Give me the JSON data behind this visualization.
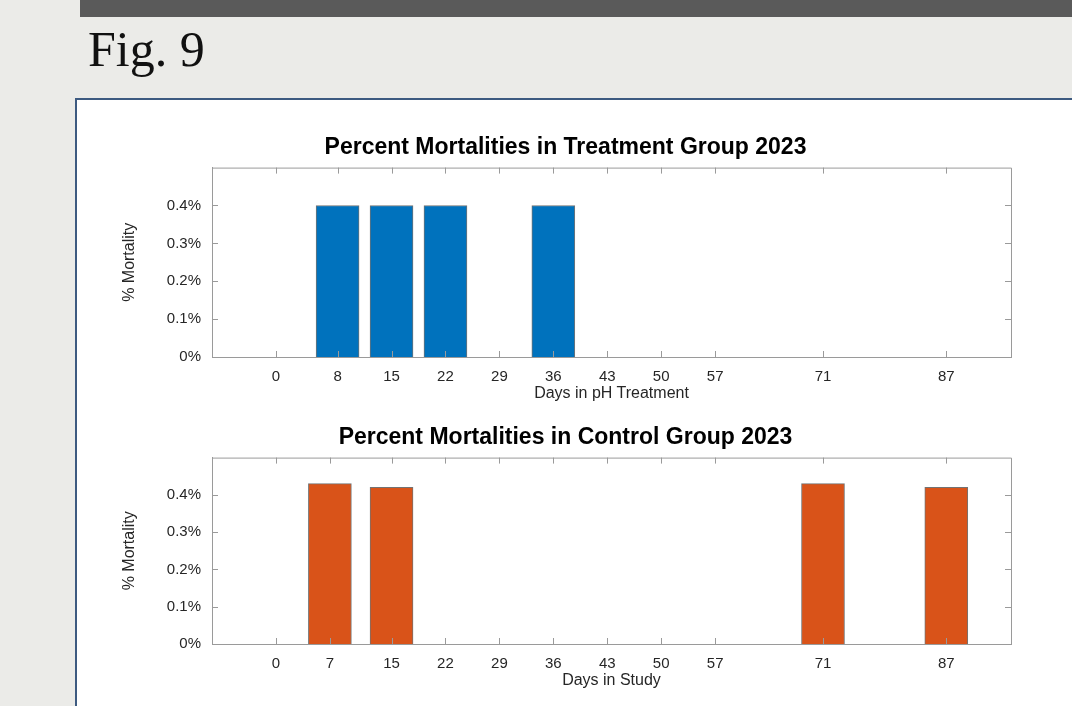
{
  "chart_data": [
    {
      "type": "bar",
      "title": "Percent Mortalities in Treatment Group 2023",
      "xlabel": "Days in pH Treatment",
      "ylabel": "% Mortality",
      "annotations": [
        "Fig. 9"
      ],
      "x": [
        8,
        15,
        22,
        36
      ],
      "values": [
        0.4,
        0.4,
        0.4,
        0.4
      ],
      "color": "#0072bd",
      "xlim": [
        -8.3,
        95.4
      ],
      "xticks": [
        0,
        8,
        15,
        22,
        29,
        36,
        43,
        50,
        57,
        71,
        87
      ],
      "ylim": [
        0,
        0.5
      ],
      "yticks": [
        {
          "value": 0,
          "label": "0%"
        },
        {
          "value": 0.1,
          "label": "0.1%"
        },
        {
          "value": 0.2,
          "label": "0.2%"
        },
        {
          "value": 0.3,
          "label": "0.3%"
        },
        {
          "value": 0.4,
          "label": "0.4%"
        }
      ]
    },
    {
      "type": "bar",
      "title": "Percent Mortalities in Control Group 2023",
      "xlabel": "Days in Study",
      "ylabel": "% Mortality",
      "x": [
        7,
        15,
        71,
        87
      ],
      "values": [
        0.43,
        0.42,
        0.43,
        0.42
      ],
      "color": "#d95319",
      "xlim": [
        -8.3,
        95.4
      ],
      "xticks": [
        0,
        7,
        15,
        22,
        29,
        36,
        43,
        50,
        57,
        71,
        87
      ],
      "ylim": [
        0,
        0.5
      ],
      "yticks": [
        {
          "value": 0,
          "label": "0%"
        },
        {
          "value": 0.1,
          "label": "0.1%"
        },
        {
          "value": 0.2,
          "label": "0.2%"
        },
        {
          "value": 0.3,
          "label": "0.3%"
        },
        {
          "value": 0.4,
          "label": "0.4%"
        }
      ]
    }
  ]
}
